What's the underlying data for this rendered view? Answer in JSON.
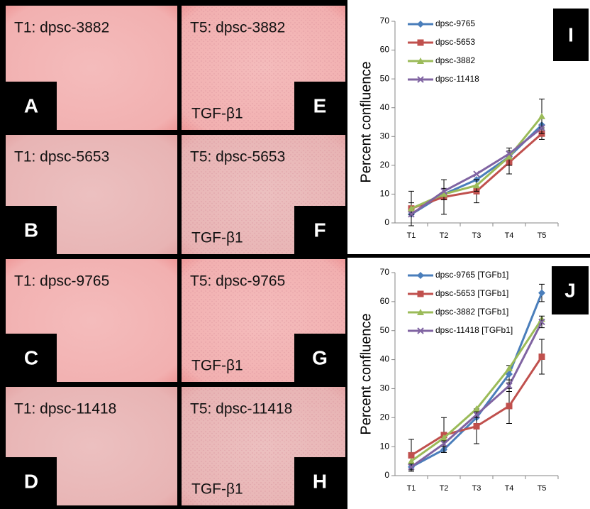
{
  "image_panels": [
    {
      "label": "T1: dpsc-3882",
      "letter": "A"
    },
    {
      "label": "T1: dpsc-5653",
      "letter": "B"
    },
    {
      "label": "T1: dpsc-9765",
      "letter": "C"
    },
    {
      "label": "T1: dpsc-11418",
      "letter": "D"
    },
    {
      "label": "T5: dpsc-3882",
      "letter": "E",
      "treatment": "TGF-β1"
    },
    {
      "label": "T5: dpsc-5653",
      "letter": "F",
      "treatment": "TGF-β1"
    },
    {
      "label": "T5: dpsc-9765",
      "letter": "G",
      "treatment": "TGF-β1"
    },
    {
      "label": "T5: dpsc-11418",
      "letter": "H",
      "treatment": "TGF-β1"
    }
  ],
  "chart_data": [
    {
      "type": "line",
      "panel_letter": "I",
      "y_label": "Percent confluence",
      "categories": [
        "T1",
        "T2",
        "T3",
        "T4",
        "T5"
      ],
      "ylim": [
        0,
        70
      ],
      "yticks": [
        0,
        10,
        20,
        30,
        40,
        50,
        60,
        70
      ],
      "series": [
        {
          "name": "dpsc-9765",
          "color": "#4a7ebb",
          "marker": "diamond",
          "values": [
            3,
            10,
            15,
            23,
            34
          ]
        },
        {
          "name": "dpsc-5653",
          "color": "#c0504d",
          "marker": "square",
          "values": [
            5,
            9,
            11,
            21,
            31
          ],
          "errors": [
            6,
            6,
            4,
            4,
            2
          ]
        },
        {
          "name": "dpsc-3882",
          "color": "#9bbb59",
          "marker": "triangle",
          "values": [
            5,
            10,
            13,
            23,
            37
          ],
          "errors": [
            2,
            2,
            2,
            3,
            6
          ]
        },
        {
          "name": "dpsc-11418",
          "color": "#8064a2",
          "marker": "x",
          "values": [
            3,
            11,
            17,
            24,
            33
          ]
        }
      ]
    },
    {
      "type": "line",
      "panel_letter": "J",
      "y_label": "Percent confluence",
      "categories": [
        "T1",
        "T2",
        "T3",
        "T4",
        "T5"
      ],
      "ylim": [
        0,
        70
      ],
      "yticks": [
        0,
        10,
        20,
        30,
        40,
        50,
        60,
        70
      ],
      "series": [
        {
          "name": "dpsc-9765 [TGFb1]",
          "color": "#4a7ebb",
          "marker": "diamond",
          "values": [
            3,
            9,
            20,
            35,
            63
          ],
          "errors": [
            1,
            1,
            2,
            3,
            3
          ]
        },
        {
          "name": "dpsc-5653 [TGFb1]",
          "color": "#c0504d",
          "marker": "square",
          "values": [
            7,
            14,
            17,
            24,
            41
          ],
          "errors": [
            5.5,
            6,
            6,
            6,
            6
          ]
        },
        {
          "name": "dpsc-3882 [TGFb1]",
          "color": "#9bbb59",
          "marker": "triangle",
          "values": [
            5,
            13,
            23,
            37,
            54
          ]
        },
        {
          "name": "dpsc-11418 [TGFb1]",
          "color": "#8064a2",
          "marker": "x",
          "values": [
            3,
            11,
            21,
            31,
            53
          ],
          "errors": [
            1,
            1,
            1,
            2,
            2
          ]
        }
      ]
    }
  ]
}
